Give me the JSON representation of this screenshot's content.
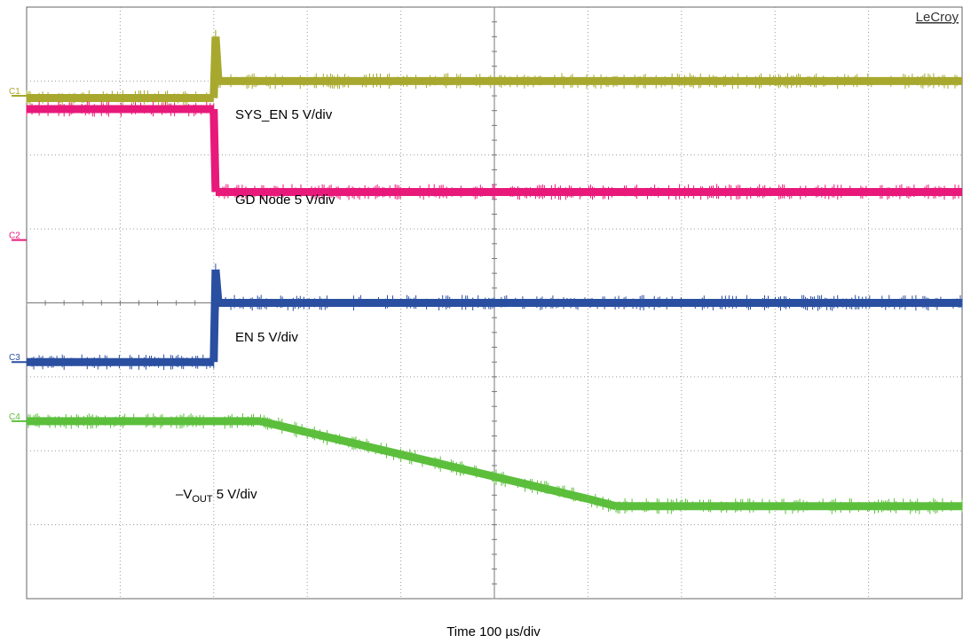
{
  "chart_data": {
    "type": "line",
    "brand": "LeCroy",
    "xlabel": "Time 100 µs/div",
    "grid": true,
    "divisions": {
      "x": 10,
      "y": 8
    },
    "xlim_div": [
      0,
      10
    ],
    "ylim_div": [
      -4,
      4
    ],
    "channels": [
      {
        "id": "C1",
        "color": "#a8a82e",
        "marker_div": 2.8
      },
      {
        "id": "C2",
        "color": "#e8197a",
        "marker_div": 0.85
      },
      {
        "id": "C3",
        "color": "#2a4fa0",
        "marker_div": -0.8
      },
      {
        "id": "C4",
        "color": "#5cbf3c",
        "marker_div": -1.6
      }
    ],
    "annotations": [
      {
        "text": "SYS_EN 5 V/div"
      },
      {
        "text": "GD Node 5 V/div"
      },
      {
        "text": "EN 5 V/div"
      },
      {
        "pre": "–V",
        "sub": "OUT",
        "post": " 5 V/div"
      }
    ],
    "series": [
      {
        "channel": "C1",
        "x": [
          0,
          2.0,
          2.02,
          2.05,
          10
        ],
        "y": [
          2.77,
          2.77,
          3.6,
          3.0,
          3.0
        ]
      },
      {
        "channel": "C2",
        "x": [
          0,
          2.0,
          2.02,
          10
        ],
        "y": [
          2.62,
          2.62,
          1.5,
          1.5
        ]
      },
      {
        "channel": "C3",
        "x": [
          0,
          2.0,
          2.02,
          2.05,
          10
        ],
        "y": [
          -0.8,
          -0.8,
          0.45,
          0.0,
          0.0
        ]
      },
      {
        "channel": "C4",
        "x": [
          0,
          2.5,
          3.0,
          4.0,
          5.0,
          6.0,
          6.3,
          10
        ],
        "y": [
          -1.6,
          -1.6,
          -1.75,
          -2.05,
          -2.35,
          -2.65,
          -2.75,
          -2.75
        ]
      }
    ]
  }
}
